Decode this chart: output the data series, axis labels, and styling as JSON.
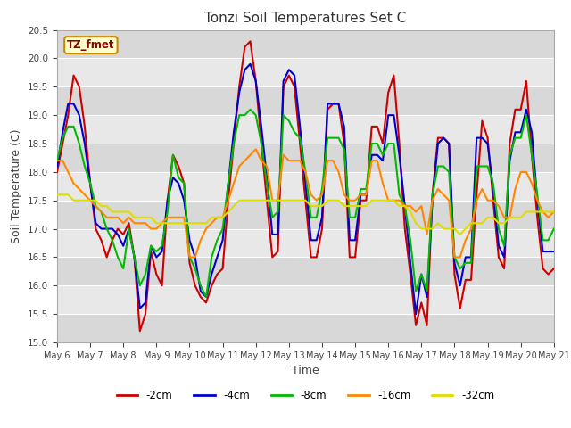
{
  "title": "Tonzi Soil Temperatures Set C",
  "xlabel": "Time",
  "ylabel": "Soil Temperature (C)",
  "ylim": [
    15.0,
    20.5
  ],
  "label_box": "TZ_fmet",
  "series": {
    "-2cm": {
      "color": "#cc0000",
      "times": [
        0.0,
        0.167,
        0.333,
        0.5,
        0.667,
        0.833,
        1.0,
        1.167,
        1.333,
        1.5,
        1.667,
        1.833,
        2.0,
        2.167,
        2.333,
        2.5,
        2.667,
        2.833,
        3.0,
        3.167,
        3.333,
        3.5,
        3.667,
        3.833,
        4.0,
        4.167,
        4.333,
        4.5,
        4.667,
        4.833,
        5.0,
        5.167,
        5.333,
        5.5,
        5.667,
        5.833,
        6.0,
        6.167,
        6.333,
        6.5,
        6.667,
        6.833,
        7.0,
        7.167,
        7.333,
        7.5,
        7.667,
        7.833,
        8.0,
        8.167,
        8.333,
        8.5,
        8.667,
        8.833,
        9.0,
        9.167,
        9.333,
        9.5,
        9.667,
        9.833,
        10.0,
        10.167,
        10.333,
        10.5,
        10.667,
        10.833,
        11.0,
        11.167,
        11.333,
        11.5,
        11.667,
        11.833,
        12.0,
        12.167,
        12.333,
        12.5,
        12.667,
        12.833,
        13.0,
        13.167,
        13.333,
        13.5,
        13.667,
        13.833,
        14.0,
        14.167,
        14.333,
        14.5,
        14.667,
        14.833,
        15.0
      ],
      "values": [
        18.0,
        18.5,
        19.0,
        19.7,
        19.5,
        18.8,
        17.8,
        17.0,
        16.8,
        16.5,
        16.8,
        17.0,
        16.9,
        17.1,
        16.5,
        15.2,
        15.5,
        16.6,
        16.2,
        16.0,
        17.5,
        18.3,
        18.1,
        17.8,
        16.4,
        16.0,
        15.8,
        15.7,
        16.0,
        16.2,
        16.3,
        17.5,
        18.5,
        19.5,
        20.2,
        20.3,
        19.6,
        18.5,
        17.5,
        16.5,
        16.6,
        19.5,
        19.7,
        19.5,
        18.5,
        17.5,
        16.5,
        16.5,
        17.0,
        19.1,
        19.2,
        19.2,
        18.5,
        16.5,
        16.5,
        17.5,
        17.5,
        18.8,
        18.8,
        18.5,
        19.4,
        19.7,
        18.5,
        17.0,
        16.2,
        15.3,
        15.7,
        15.3,
        17.6,
        18.6,
        18.6,
        18.5,
        16.2,
        15.6,
        16.1,
        16.1,
        17.6,
        18.9,
        18.6,
        17.5,
        16.5,
        16.3,
        18.5,
        19.1,
        19.1,
        19.6,
        18.3,
        17.2,
        16.3,
        16.2,
        16.3
      ]
    },
    "-4cm": {
      "color": "#0000cc",
      "times": [
        0.0,
        0.167,
        0.333,
        0.5,
        0.667,
        0.833,
        1.0,
        1.167,
        1.333,
        1.5,
        1.667,
        1.833,
        2.0,
        2.167,
        2.333,
        2.5,
        2.667,
        2.833,
        3.0,
        3.167,
        3.333,
        3.5,
        3.667,
        3.833,
        4.0,
        4.167,
        4.333,
        4.5,
        4.667,
        4.833,
        5.0,
        5.167,
        5.333,
        5.5,
        5.667,
        5.833,
        6.0,
        6.167,
        6.333,
        6.5,
        6.667,
        6.833,
        7.0,
        7.167,
        7.333,
        7.5,
        7.667,
        7.833,
        8.0,
        8.167,
        8.333,
        8.5,
        8.667,
        8.833,
        9.0,
        9.167,
        9.333,
        9.5,
        9.667,
        9.833,
        10.0,
        10.167,
        10.333,
        10.5,
        10.667,
        10.833,
        11.0,
        11.167,
        11.333,
        11.5,
        11.667,
        11.833,
        12.0,
        12.167,
        12.333,
        12.5,
        12.667,
        12.833,
        13.0,
        13.167,
        13.333,
        13.5,
        13.667,
        13.833,
        14.0,
        14.167,
        14.333,
        14.5,
        14.667,
        14.833,
        15.0
      ],
      "values": [
        18.1,
        18.7,
        19.2,
        19.2,
        19.0,
        18.5,
        17.8,
        17.1,
        17.0,
        17.0,
        17.0,
        16.9,
        16.7,
        17.0,
        16.5,
        15.6,
        15.7,
        16.7,
        16.5,
        16.6,
        17.5,
        17.9,
        17.8,
        17.5,
        16.8,
        16.5,
        15.9,
        15.8,
        16.2,
        16.5,
        16.8,
        17.8,
        18.7,
        19.4,
        19.8,
        19.9,
        19.6,
        18.8,
        17.9,
        16.9,
        16.9,
        19.6,
        19.8,
        19.7,
        18.8,
        17.8,
        16.8,
        16.8,
        17.2,
        19.2,
        19.2,
        19.2,
        18.8,
        16.8,
        16.8,
        17.6,
        17.6,
        18.3,
        18.3,
        18.2,
        19.0,
        19.0,
        18.3,
        17.4,
        16.4,
        15.5,
        16.2,
        15.8,
        17.5,
        18.5,
        18.6,
        18.5,
        16.4,
        16.0,
        16.5,
        16.5,
        18.6,
        18.6,
        18.5,
        17.7,
        16.7,
        16.5,
        18.2,
        18.7,
        18.7,
        19.1,
        18.7,
        17.5,
        16.6,
        16.6,
        16.6
      ]
    },
    "-8cm": {
      "color": "#00bb00",
      "times": [
        0.0,
        0.167,
        0.333,
        0.5,
        0.667,
        0.833,
        1.0,
        1.167,
        1.333,
        1.5,
        1.667,
        1.833,
        2.0,
        2.167,
        2.333,
        2.5,
        2.667,
        2.833,
        3.0,
        3.167,
        3.333,
        3.5,
        3.667,
        3.833,
        4.0,
        4.167,
        4.333,
        4.5,
        4.667,
        4.833,
        5.0,
        5.167,
        5.333,
        5.5,
        5.667,
        5.833,
        6.0,
        6.167,
        6.333,
        6.5,
        6.667,
        6.833,
        7.0,
        7.167,
        7.333,
        7.5,
        7.667,
        7.833,
        8.0,
        8.167,
        8.333,
        8.5,
        8.667,
        8.833,
        9.0,
        9.167,
        9.333,
        9.5,
        9.667,
        9.833,
        10.0,
        10.167,
        10.333,
        10.5,
        10.667,
        10.833,
        11.0,
        11.167,
        11.333,
        11.5,
        11.667,
        11.833,
        12.0,
        12.167,
        12.333,
        12.5,
        12.667,
        12.833,
        13.0,
        13.167,
        13.333,
        13.5,
        13.667,
        13.833,
        14.0,
        14.167,
        14.333,
        14.5,
        14.667,
        14.833,
        15.0
      ],
      "values": [
        18.2,
        18.6,
        18.8,
        18.8,
        18.5,
        18.1,
        17.8,
        17.4,
        17.3,
        17.0,
        16.8,
        16.5,
        16.3,
        17.0,
        16.5,
        16.0,
        16.2,
        16.7,
        16.6,
        16.7,
        17.3,
        18.3,
        17.9,
        17.8,
        16.5,
        16.3,
        16.0,
        15.8,
        16.5,
        16.8,
        17.0,
        17.8,
        18.5,
        19.0,
        19.0,
        19.1,
        19.0,
        18.5,
        17.8,
        17.2,
        17.3,
        19.0,
        18.9,
        18.7,
        18.6,
        18.0,
        17.2,
        17.2,
        17.7,
        18.6,
        18.6,
        18.6,
        18.4,
        17.2,
        17.2,
        17.7,
        17.7,
        18.5,
        18.5,
        18.3,
        18.5,
        18.5,
        17.6,
        17.4,
        16.8,
        15.9,
        16.2,
        15.9,
        17.6,
        18.1,
        18.1,
        18.0,
        16.5,
        16.3,
        16.4,
        16.4,
        18.1,
        18.1,
        18.1,
        17.8,
        17.0,
        16.7,
        18.3,
        18.6,
        18.6,
        19.0,
        18.3,
        17.6,
        16.8,
        16.8,
        17.0
      ]
    },
    "-16cm": {
      "color": "#ff8800",
      "times": [
        0.0,
        0.167,
        0.333,
        0.5,
        0.667,
        0.833,
        1.0,
        1.167,
        1.333,
        1.5,
        1.667,
        1.833,
        2.0,
        2.167,
        2.333,
        2.5,
        2.667,
        2.833,
        3.0,
        3.167,
        3.333,
        3.5,
        3.667,
        3.833,
        4.0,
        4.167,
        4.333,
        4.5,
        4.667,
        4.833,
        5.0,
        5.167,
        5.333,
        5.5,
        5.667,
        5.833,
        6.0,
        6.167,
        6.333,
        6.5,
        6.667,
        6.833,
        7.0,
        7.167,
        7.333,
        7.5,
        7.667,
        7.833,
        8.0,
        8.167,
        8.333,
        8.5,
        8.667,
        8.833,
        9.0,
        9.167,
        9.333,
        9.5,
        9.667,
        9.833,
        10.0,
        10.167,
        10.333,
        10.5,
        10.667,
        10.833,
        11.0,
        11.167,
        11.333,
        11.5,
        11.667,
        11.833,
        12.0,
        12.167,
        12.333,
        12.5,
        12.667,
        12.833,
        13.0,
        13.167,
        13.333,
        13.5,
        13.667,
        13.833,
        14.0,
        14.167,
        14.333,
        14.5,
        14.667,
        14.833,
        15.0
      ],
      "values": [
        18.2,
        18.2,
        18.0,
        17.8,
        17.7,
        17.6,
        17.5,
        17.4,
        17.3,
        17.2,
        17.2,
        17.2,
        17.1,
        17.2,
        17.1,
        17.1,
        17.1,
        17.0,
        17.0,
        17.1,
        17.2,
        17.2,
        17.2,
        17.2,
        16.5,
        16.5,
        16.8,
        17.0,
        17.1,
        17.2,
        17.2,
        17.5,
        17.8,
        18.1,
        18.2,
        18.3,
        18.4,
        18.2,
        18.1,
        17.5,
        17.5,
        18.3,
        18.2,
        18.2,
        18.2,
        18.0,
        17.6,
        17.5,
        17.6,
        18.2,
        18.2,
        18.0,
        17.6,
        17.5,
        17.5,
        17.6,
        17.6,
        18.2,
        18.2,
        17.8,
        17.5,
        17.5,
        17.5,
        17.4,
        17.4,
        17.3,
        17.4,
        16.9,
        17.5,
        17.7,
        17.6,
        17.5,
        16.5,
        16.5,
        16.8,
        17.0,
        17.5,
        17.7,
        17.5,
        17.5,
        17.4,
        17.2,
        17.2,
        17.7,
        18.0,
        18.0,
        17.8,
        17.5,
        17.3,
        17.2,
        17.3
      ]
    },
    "-32cm": {
      "color": "#dddd00",
      "times": [
        0.0,
        0.167,
        0.333,
        0.5,
        0.667,
        0.833,
        1.0,
        1.167,
        1.333,
        1.5,
        1.667,
        1.833,
        2.0,
        2.167,
        2.333,
        2.5,
        2.667,
        2.833,
        3.0,
        3.167,
        3.333,
        3.5,
        3.667,
        3.833,
        4.0,
        4.167,
        4.333,
        4.5,
        4.667,
        4.833,
        5.0,
        5.167,
        5.333,
        5.5,
        5.667,
        5.833,
        6.0,
        6.167,
        6.333,
        6.5,
        6.667,
        6.833,
        7.0,
        7.167,
        7.333,
        7.5,
        7.667,
        7.833,
        8.0,
        8.167,
        8.333,
        8.5,
        8.667,
        8.833,
        9.0,
        9.167,
        9.333,
        9.5,
        9.667,
        9.833,
        10.0,
        10.167,
        10.333,
        10.5,
        10.667,
        10.833,
        11.0,
        11.167,
        11.333,
        11.5,
        11.667,
        11.833,
        12.0,
        12.167,
        12.333,
        12.5,
        12.667,
        12.833,
        13.0,
        13.167,
        13.333,
        13.5,
        13.667,
        13.833,
        14.0,
        14.167,
        14.333,
        14.5,
        14.667,
        14.833,
        15.0
      ],
      "values": [
        17.6,
        17.6,
        17.6,
        17.5,
        17.5,
        17.5,
        17.5,
        17.5,
        17.4,
        17.4,
        17.3,
        17.3,
        17.3,
        17.3,
        17.2,
        17.2,
        17.2,
        17.2,
        17.1,
        17.1,
        17.1,
        17.1,
        17.1,
        17.1,
        17.1,
        17.1,
        17.1,
        17.1,
        17.2,
        17.2,
        17.2,
        17.3,
        17.4,
        17.5,
        17.5,
        17.5,
        17.5,
        17.5,
        17.5,
        17.5,
        17.5,
        17.5,
        17.5,
        17.5,
        17.5,
        17.5,
        17.4,
        17.4,
        17.4,
        17.5,
        17.5,
        17.5,
        17.4,
        17.4,
        17.4,
        17.4,
        17.4,
        17.5,
        17.5,
        17.5,
        17.5,
        17.5,
        17.4,
        17.4,
        17.3,
        17.1,
        17.0,
        17.0,
        17.0,
        17.1,
        17.0,
        17.0,
        17.0,
        16.9,
        17.0,
        17.1,
        17.1,
        17.1,
        17.2,
        17.2,
        17.1,
        17.1,
        17.2,
        17.2,
        17.2,
        17.3,
        17.3,
        17.3,
        17.3,
        17.3,
        17.3
      ]
    }
  },
  "x_ticks": [
    0,
    1,
    2,
    3,
    4,
    5,
    6,
    7,
    8,
    9,
    10,
    11,
    12,
    13,
    14,
    15
  ],
  "x_tick_labels": [
    "May 6",
    "May 7",
    "May 8",
    "May 9",
    "May 10",
    "May 11",
    "May 12",
    "May 13",
    "May 14",
    "May 15",
    "May 16",
    "May 17",
    "May 18",
    "May 19",
    "May 20",
    "May 21"
  ],
  "legend_entries": [
    "-2cm",
    "-4cm",
    "-8cm",
    "-16cm",
    "-32cm"
  ],
  "legend_colors": [
    "#cc0000",
    "#0000cc",
    "#00bb00",
    "#ff8800",
    "#dddd00"
  ],
  "grid_colors": [
    "#d0d0d0",
    "#e8e8e8"
  ]
}
